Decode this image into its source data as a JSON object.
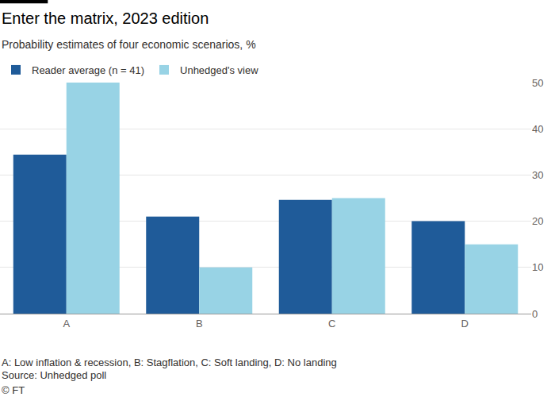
{
  "chart_data": {
    "type": "bar",
    "title": "Enter the matrix, 2023 edition",
    "subtitle": "Probability estimates of four economic scenarios, %",
    "categories": [
      "A",
      "B",
      "C",
      "D"
    ],
    "series": [
      {
        "name": "Reader average (n = 41)",
        "color": "#1f5b99",
        "values": [
          34.4,
          21,
          24.6,
          20
        ]
      },
      {
        "name": "Unhedged's view",
        "color": "#98d3e5",
        "values": [
          50,
          10,
          25,
          15
        ]
      }
    ],
    "ylim": [
      0,
      50
    ],
    "yticks": [
      0,
      10,
      20,
      30,
      40,
      50
    ],
    "grid": true,
    "legend": "top left",
    "annotations": [
      "A: Low inflation & recession, B: Stagflation, C: Soft landing, D: No landing",
      "Source: Unhedged poll",
      "© FT"
    ]
  }
}
